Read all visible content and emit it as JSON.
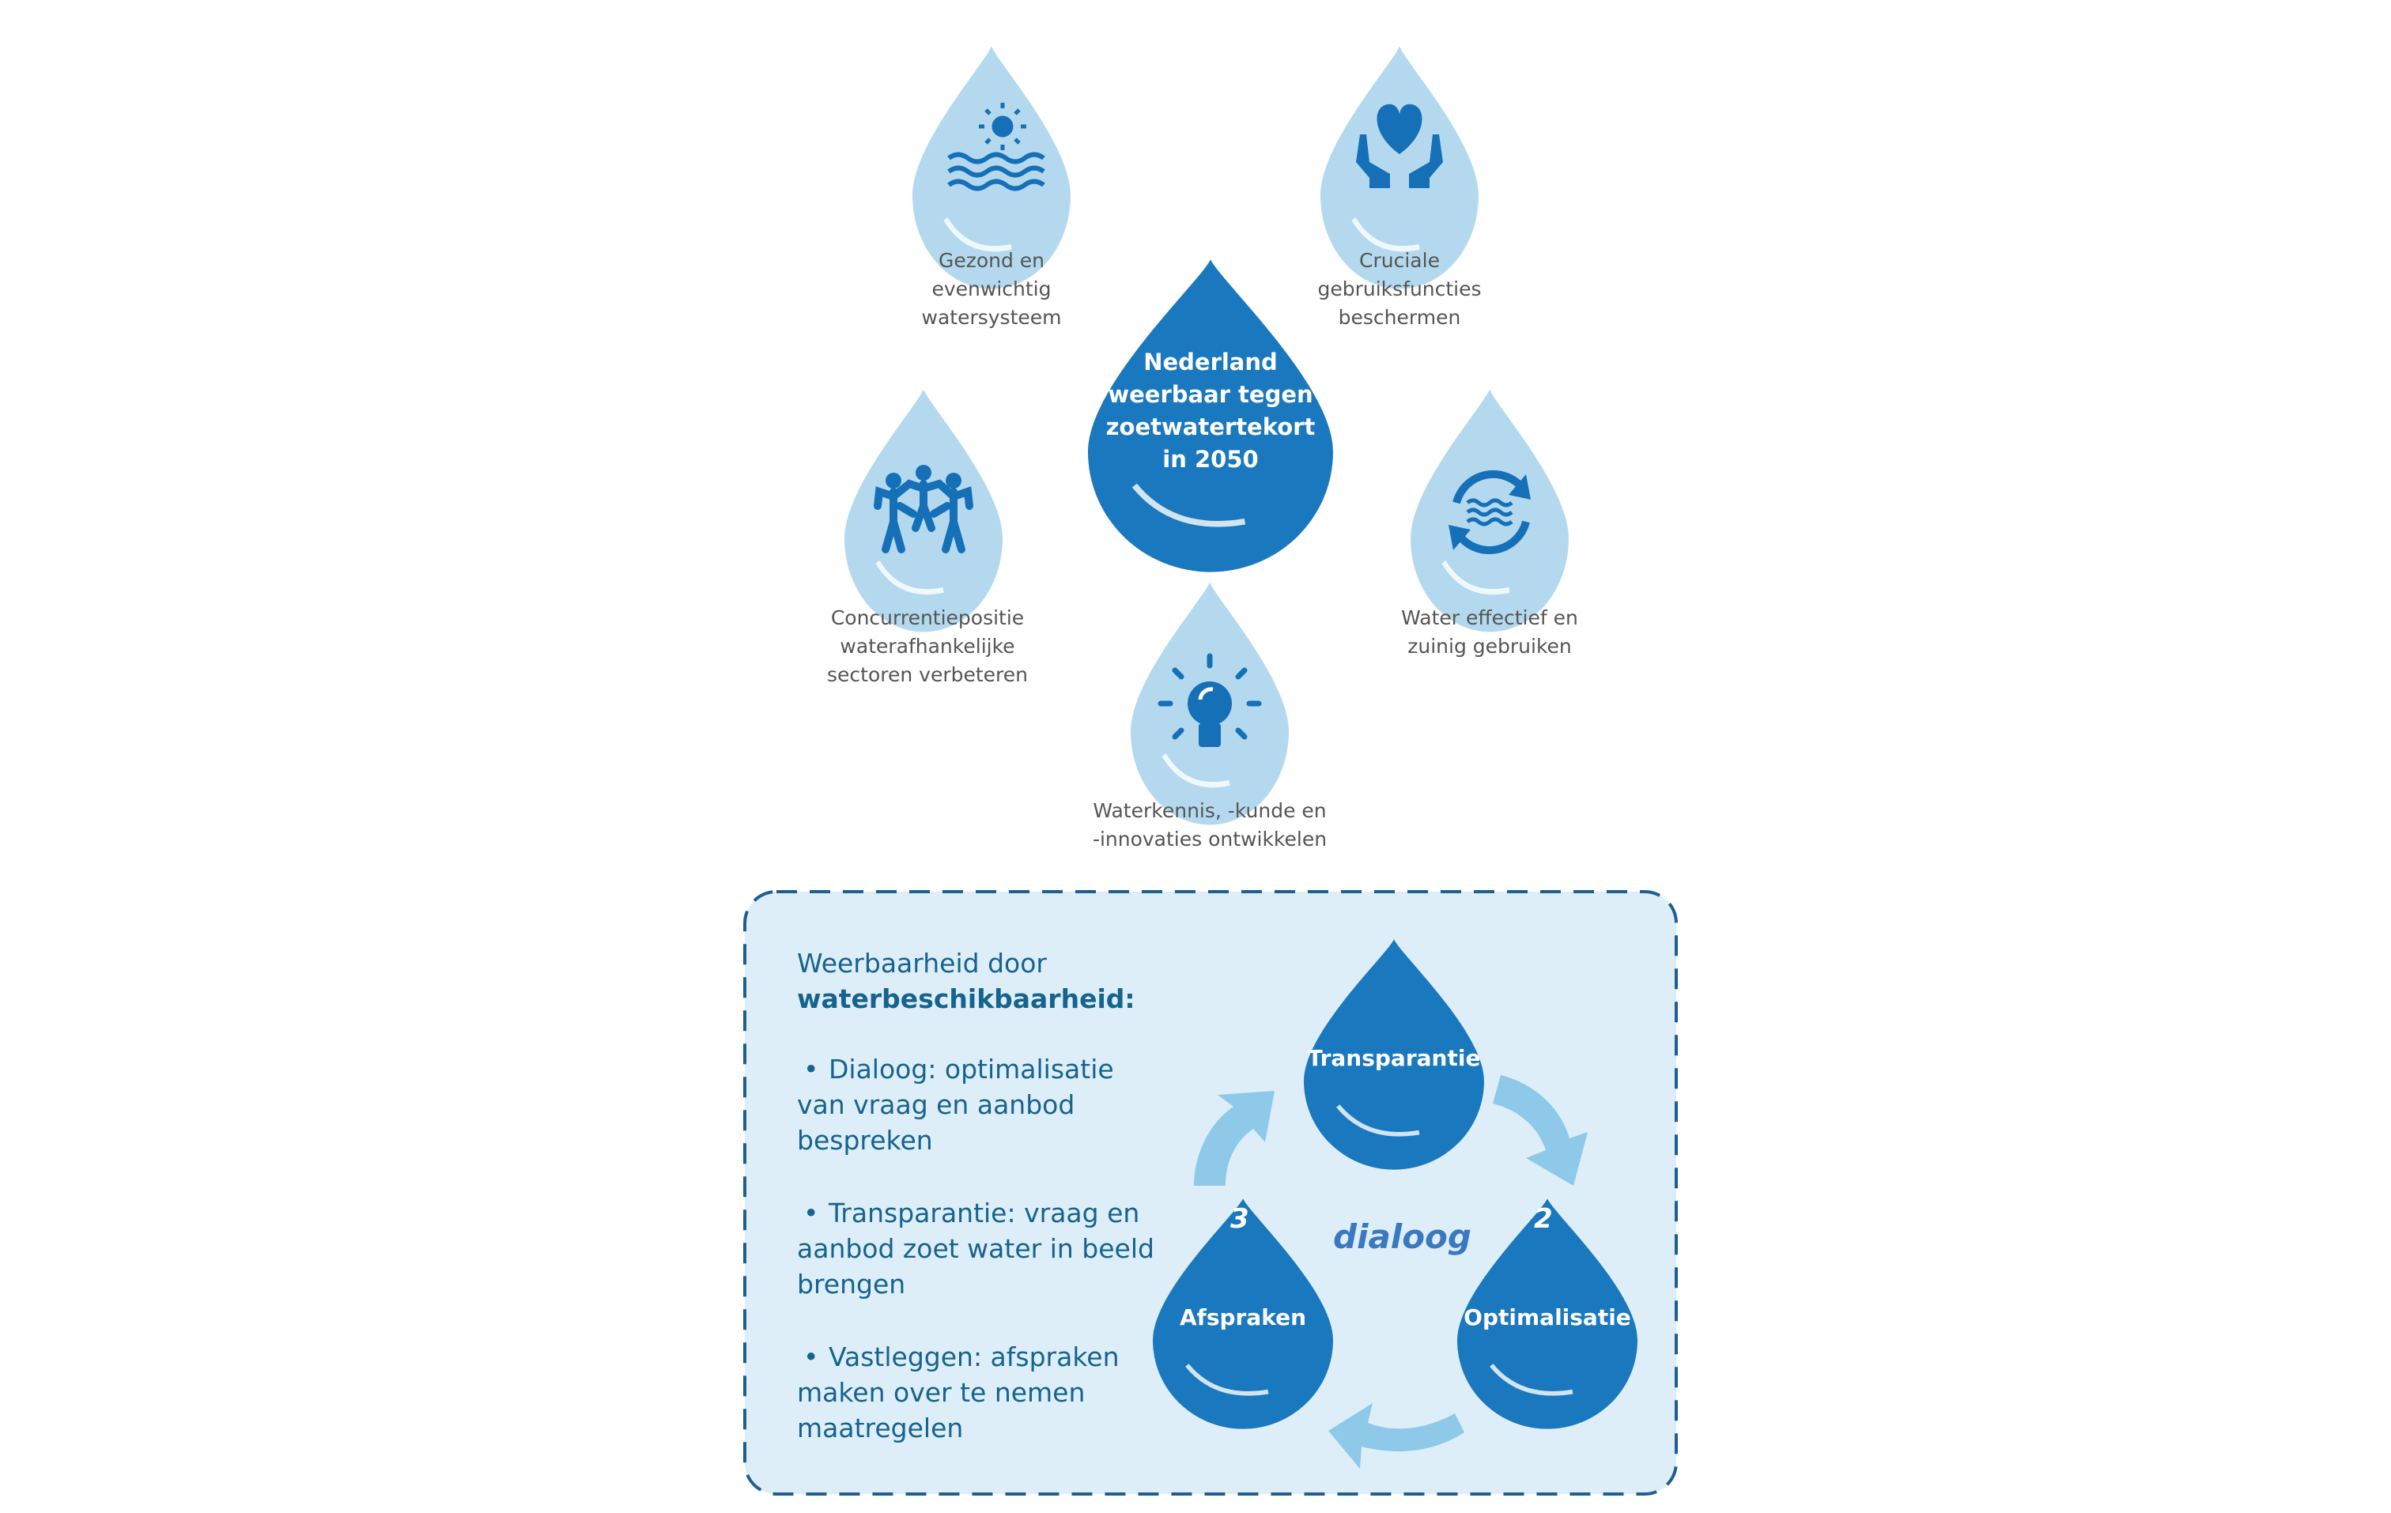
{
  "center": {
    "title": "Nederland\nweerbaar tegen\nzoetwatertekort\nin 2050"
  },
  "goals": [
    {
      "label": "Gezond en\nevenwichtig\nwatersysteem",
      "icon": "sun-over-water-icon"
    },
    {
      "label": "Cruciale\ngebruiksfuncties\nbeschermen",
      "icon": "hands-holding-heart-icon"
    },
    {
      "label": "Concurrentiepositie\nwaterafhankelijke\nsectoren verbeteren",
      "icon": "people-holding-hands-icon"
    },
    {
      "label": "Water effectief en\nzuinig gebruiken",
      "icon": "water-cycle-icon"
    },
    {
      "label": "Waterkennis, -kunde en\n-innovaties ontwikkelen",
      "icon": "lightbulb-icon"
    }
  ],
  "box": {
    "heading_line1": "Weerbaarheid door",
    "heading_line2": "waterbeschikbaarheid:",
    "bullet_symbol": "•",
    "bullets": [
      {
        "first": "Dialoog: optimalisatie",
        "rest": "van vraag en aanbod\nbespreken"
      },
      {
        "first": "Transparantie: vraag en",
        "rest": "aanbod zoet water in beeld\nbrengen"
      },
      {
        "first": "Vastleggen: afspraken",
        "rest": "maken over te nemen\nmaatregelen"
      }
    ]
  },
  "cycle": {
    "center_label": "dialoog",
    "steps": [
      {
        "label": "Transparantie",
        "number": ""
      },
      {
        "label": "Optimalisatie",
        "number": "2"
      },
      {
        "label": "Afspraken",
        "number": "3"
      }
    ]
  },
  "colors": {
    "drop_dark": "#1a78be",
    "drop_light": "#b4d9ef",
    "icon": "#1570b8",
    "box_fill": "#deeef8",
    "box_border": "#1f5f8f",
    "arrow": "#8ec9ea"
  }
}
